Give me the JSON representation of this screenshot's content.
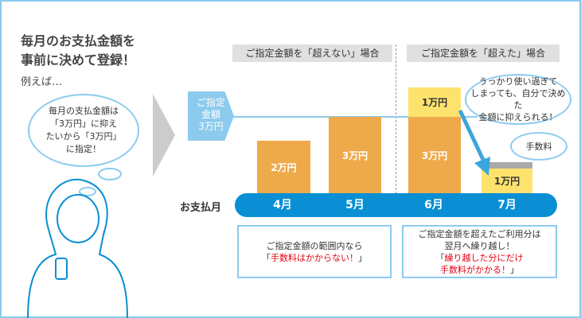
{
  "title_lines": [
    "毎月のお支払金額を",
    "事前に決めて登録！"
  ],
  "example": "例えば…",
  "thought": "毎月の支払金額は\n「3万円」に抑え\nたいから「3万円」\nに指定！",
  "headers": [
    "ご指定金額を「超えない」場合",
    "ご指定金額を「超えた」場合"
  ],
  "limit_tag": "ご指定\n金額\n3万円",
  "bars": {
    "apr": "2万円",
    "may": "3万円",
    "jun_base": "3万円",
    "jun_over": "1万円",
    "jul_carry": "1万円"
  },
  "payment_month_label": "お支払月",
  "months": [
    "4月",
    "5月",
    "6月",
    "7月"
  ],
  "speech_main": "うっかり使い過ぎて\nしまっても、自分で決めた\n金額に抑えられる！",
  "speech_fee": "手数料",
  "box_left": {
    "line1": "ご指定金額の範囲内なら",
    "q_open": "「",
    "red": "手数料はかからない！",
    "q_close": "」"
  },
  "box_right": {
    "line1": "ご指定金額を超えたご利用分は\n翌月へ繰り越し！",
    "q_open": "「",
    "red": "繰り越した分にだけ\n手数料がかかる！",
    "q_close": "」"
  },
  "colors": {
    "accent_blue": "#0a8fd4",
    "light_blue": "#8ccbee",
    "orange": "#eeaa4a",
    "yellow": "#fde36e",
    "red": "#e60012"
  }
}
